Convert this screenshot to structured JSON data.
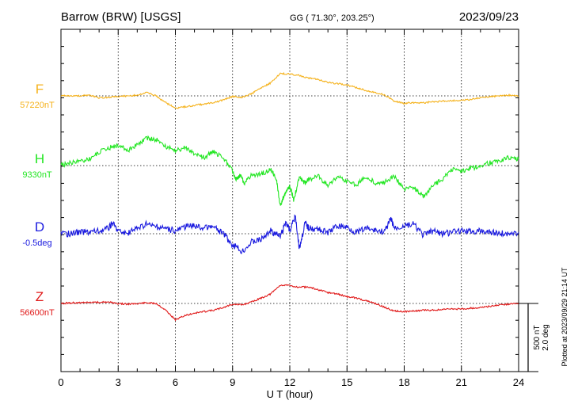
{
  "header": {
    "station": "Barrow (BRW)  [USGS]",
    "coords": "GG ( 71.30°, 203.25°)",
    "date": "2023/09/23"
  },
  "plotted_note": "Plotted at 2023/09/29 21:14 UT",
  "scale_bar": {
    "line1": "500 nT",
    "line2": "2.0 deg"
  },
  "colors": {
    "F": "#f5b21c",
    "H": "#22e622",
    "D": "#1a1adf",
    "Z": "#e01818",
    "axis": "#000000"
  },
  "chart_data": {
    "type": "line",
    "title": "",
    "xlabel": "U T (hour)",
    "ylabel": "",
    "xlim": [
      0,
      24
    ],
    "xticks": [
      "0",
      "3",
      "6",
      "9",
      "12",
      "15",
      "18",
      "21",
      "24"
    ],
    "grid": true,
    "series": [
      {
        "name": "F",
        "baseline_label": "57220nT",
        "x": [
          0,
          0.5,
          1,
          1.5,
          2,
          2.5,
          3,
          3.5,
          4,
          4.5,
          5,
          5.5,
          6,
          6.5,
          7,
          7.5,
          8,
          8.5,
          9,
          9.5,
          10,
          10.5,
          11,
          11.5,
          12,
          12.5,
          13,
          13.5,
          14,
          14.5,
          15,
          15.5,
          16,
          16.5,
          17,
          17.5,
          18,
          18.5,
          19,
          19.5,
          20,
          20.5,
          21,
          21.5,
          22,
          22.5,
          23,
          23.5,
          24
        ],
        "values": [
          0,
          0,
          0,
          5,
          -15,
          -10,
          -5,
          0,
          5,
          25,
          0,
          -50,
          -90,
          -80,
          -70,
          -60,
          -50,
          -30,
          -5,
          -10,
          15,
          60,
          95,
          165,
          160,
          150,
          130,
          120,
          100,
          90,
          80,
          60,
          40,
          25,
          5,
          -40,
          -55,
          -50,
          -50,
          -45,
          -40,
          -35,
          -35,
          -25,
          -15,
          -5,
          0,
          5,
          0
        ]
      },
      {
        "name": "H",
        "baseline_label": "9330nT",
        "x": [
          0,
          0.5,
          1,
          1.5,
          2,
          2.5,
          3,
          3.5,
          4,
          4.5,
          5,
          5.5,
          6,
          6.5,
          7,
          7.5,
          8,
          8.5,
          9,
          9.2,
          9.4,
          9.6,
          10,
          10.5,
          11,
          11.3,
          11.5,
          11.7,
          12,
          12.2,
          12.5,
          12.8,
          13,
          13.5,
          14,
          14.5,
          15,
          15.5,
          16,
          16.5,
          17,
          17.5,
          18,
          18.5,
          19,
          19.5,
          20,
          20.5,
          21,
          21.5,
          22,
          22.5,
          23,
          23.5,
          24
        ],
        "values": [
          0,
          20,
          35,
          50,
          100,
          130,
          150,
          110,
          150,
          200,
          190,
          140,
          110,
          130,
          90,
          60,
          100,
          60,
          -40,
          -100,
          -70,
          -130,
          -70,
          -60,
          -30,
          -100,
          -300,
          -220,
          -150,
          -250,
          -90,
          -130,
          -100,
          -80,
          -150,
          -80,
          -120,
          -140,
          -80,
          -130,
          -120,
          -80,
          -170,
          -160,
          -230,
          -150,
          -100,
          -30,
          -40,
          -20,
          0,
          20,
          30,
          60,
          50
        ]
      },
      {
        "name": "D",
        "baseline_label": "-0.5deg",
        "x": [
          0,
          0.5,
          1,
          1.5,
          2,
          2.5,
          2.7,
          3,
          3.5,
          4,
          4.5,
          5,
          5.5,
          6,
          6.5,
          7,
          7.5,
          8,
          8.5,
          9,
          9.5,
          10,
          10.5,
          11,
          11.5,
          11.8,
          12,
          12.3,
          12.5,
          12.8,
          13,
          13.5,
          14,
          14.5,
          15,
          15.5,
          16,
          16.5,
          17,
          17.3,
          17.5,
          18,
          18.5,
          19,
          19.5,
          20,
          20.5,
          21,
          21.5,
          22,
          22.5,
          23,
          23.5,
          24
        ],
        "values": [
          0,
          0,
          10,
          15,
          20,
          40,
          80,
          20,
          0,
          40,
          70,
          50,
          40,
          20,
          50,
          60,
          40,
          50,
          0,
          -80,
          -130,
          -60,
          -40,
          20,
          -20,
          90,
          20,
          130,
          -110,
          80,
          40,
          30,
          10,
          60,
          50,
          10,
          40,
          20,
          20,
          110,
          40,
          60,
          70,
          -10,
          20,
          0,
          10,
          20,
          15,
          20,
          10,
          0,
          5,
          10
        ]
      },
      {
        "name": "Z",
        "baseline_label": "56600nT",
        "x": [
          0,
          0.5,
          1,
          1.5,
          2,
          2.5,
          3,
          3.5,
          4,
          4.5,
          5,
          5.5,
          6,
          6.5,
          7,
          7.5,
          8,
          8.5,
          9,
          9.5,
          10,
          10.5,
          11,
          11.5,
          12,
          12.5,
          13,
          13.5,
          14,
          14.5,
          15,
          15.5,
          16,
          16.5,
          17,
          17.5,
          18,
          18.5,
          19,
          19.5,
          20,
          20.5,
          21,
          21.5,
          22,
          22.5,
          23,
          23.5,
          24
        ],
        "values": [
          0,
          5,
          5,
          10,
          10,
          10,
          0,
          -5,
          0,
          5,
          0,
          -50,
          -120,
          -90,
          -70,
          -60,
          -50,
          -30,
          -5,
          -10,
          10,
          40,
          70,
          135,
          130,
          120,
          120,
          100,
          80,
          70,
          50,
          40,
          20,
          0,
          -30,
          -55,
          -60,
          -55,
          -50,
          -50,
          -45,
          -40,
          -40,
          -35,
          -30,
          -20,
          -10,
          -5,
          0
        ]
      }
    ]
  }
}
